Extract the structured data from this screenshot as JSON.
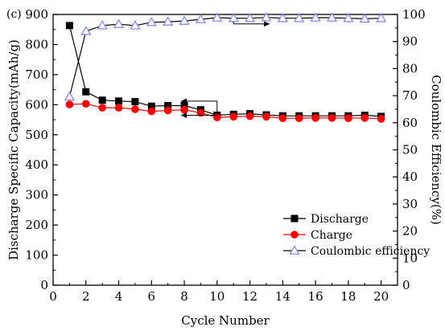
{
  "chart_data": {
    "type": "line",
    "panel_label": "(c)",
    "xlabel": "Cycle Number",
    "ylabel": "Discharge Specific Capacity(mAh/g)",
    "y2label": "Coulombic Efficiency(%)",
    "xlim": [
      0,
      21
    ],
    "ylim": [
      0,
      900
    ],
    "y2lim": [
      0,
      100
    ],
    "xticks": [
      0,
      2,
      4,
      6,
      8,
      10,
      12,
      14,
      16,
      18,
      20
    ],
    "yticks": [
      0,
      100,
      200,
      300,
      400,
      500,
      600,
      700,
      800,
      900
    ],
    "y2ticks": [
      0,
      10,
      20,
      30,
      40,
      50,
      60,
      70,
      80,
      90,
      100
    ],
    "grid": false,
    "legend_position": "center-right",
    "x": [
      1,
      2,
      3,
      4,
      5,
      6,
      7,
      8,
      9,
      10,
      11,
      12,
      13,
      14,
      15,
      16,
      17,
      18,
      19,
      20
    ],
    "series": [
      {
        "name": "Discharge",
        "axis": "left",
        "marker": "square",
        "color": "#000000",
        "values": [
          863,
          643,
          615,
          612,
          610,
          595,
          597,
          597,
          583,
          565,
          568,
          570,
          566,
          563,
          563,
          563,
          563,
          563,
          565,
          561
        ]
      },
      {
        "name": "Charge",
        "axis": "left",
        "marker": "circle",
        "color": "#ff0000",
        "values": [
          601,
          603,
          590,
          590,
          585,
          578,
          581,
          583,
          573,
          558,
          560,
          562,
          560,
          555,
          555,
          556,
          556,
          555,
          556,
          553
        ]
      },
      {
        "name": "Coulombic efficiency",
        "axis": "right",
        "marker": "triangle-open",
        "color": "#000000",
        "marker_color": "#7f7fff",
        "values": [
          69.6,
          93.8,
          95.9,
          96.4,
          95.9,
          97.1,
          97.3,
          97.6,
          98.2,
          98.8,
          98.6,
          98.6,
          98.9,
          98.6,
          98.6,
          98.8,
          98.8,
          98.6,
          98.4,
          98.6
        ]
      }
    ],
    "annotations": [
      {
        "type": "arrow-left",
        "y": 612,
        "x_from": 10,
        "x_to": 7.8
      },
      {
        "type": "arrow-left",
        "y": 565,
        "x_from": 10,
        "x_to": 7.8
      },
      {
        "type": "arrow-right",
        "y2": 96.5,
        "x_from": 11,
        "x_to": 13.2
      }
    ]
  }
}
